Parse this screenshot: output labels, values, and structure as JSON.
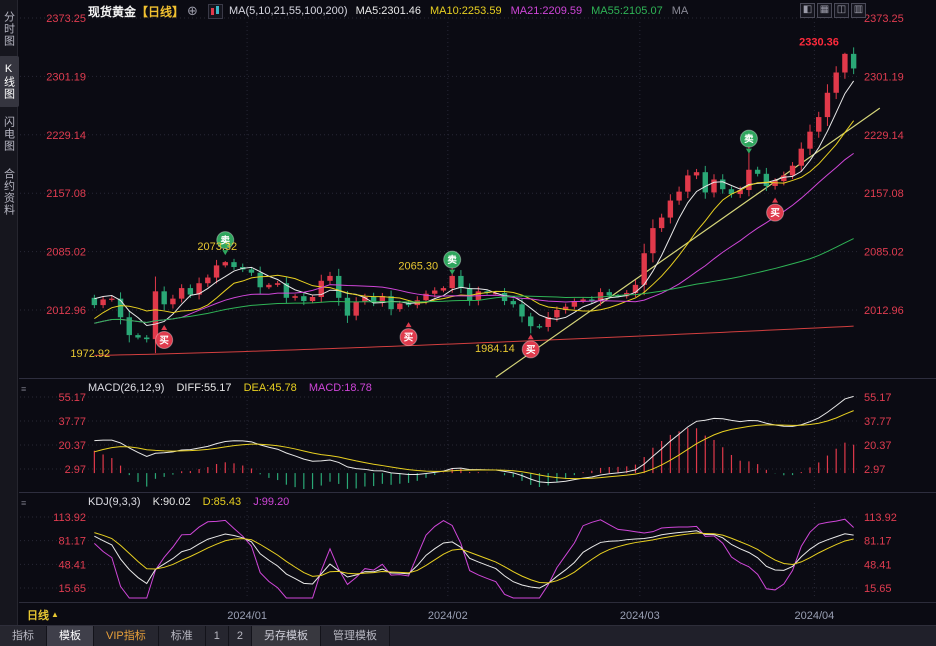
{
  "header": {
    "title": "现货黄金",
    "period": "【日线】",
    "ma_settings": "MA(5,10,21,55,100,200)",
    "ma": [
      {
        "text": "MA5:2301.46",
        "color": "#e8e8e8"
      },
      {
        "text": "MA10:2253.59",
        "color": "#e8d021"
      },
      {
        "text": "MA21:2209.59",
        "color": "#cf46d8"
      },
      {
        "text": "MA55:2105.07",
        "color": "#2fb456"
      },
      {
        "text": "MA",
        "color": "#8a8a96"
      }
    ]
  },
  "icons": {
    "add": "⊕",
    "handle": "≡",
    "layout": [
      "◧",
      "▦",
      "◫",
      "▥"
    ]
  },
  "sidebar": {
    "items": [
      {
        "label": "分时图",
        "selected": false
      },
      {
        "label": "K线图",
        "selected": true
      },
      {
        "label": "闪电图",
        "selected": false
      },
      {
        "label": "合约资料",
        "selected": false
      }
    ]
  },
  "macd_header": {
    "name": "MACD(26,12,9)",
    "diff": "DIFF:55.17",
    "dea": "DEA:45.78",
    "macd": "MACD:18.78"
  },
  "kdj_header": {
    "name": "KDJ(9,3,3)",
    "k": "K:90.02",
    "d": "D:85.43",
    "j": "J:99.20"
  },
  "period_selector": {
    "label": "日线",
    "arrow": "▲"
  },
  "bottom_tabs": [
    {
      "label": "指标"
    },
    {
      "label": "模板",
      "active": true
    },
    {
      "label": "VIP指标",
      "vip": true
    },
    {
      "label": "标准"
    },
    {
      "label": "1",
      "small": true
    },
    {
      "label": "2",
      "small": true
    },
    {
      "label": "另存模板",
      "raised": true
    },
    {
      "label": "管理模板"
    }
  ],
  "chart_data": {
    "type": "candlestick",
    "symbol": "现货黄金",
    "period": "日线",
    "price_axis": [
      2373.25,
      2301.19,
      2229.14,
      2157.08,
      2085.02,
      2012.96
    ],
    "macd_axis": [
      55.17,
      37.77,
      20.37,
      2.97
    ],
    "kdj_axis": [
      113.92,
      81.17,
      48.41,
      15.65
    ],
    "x_ticks": [
      {
        "label": "2024/01",
        "index": 18
      },
      {
        "label": "2024/02",
        "index": 41
      },
      {
        "label": "2024/03",
        "index": 63
      },
      {
        "label": "2024/04",
        "index": 83
      }
    ],
    "warmup": [
      1940,
      1952,
      1966,
      1978,
      1990,
      2003,
      2012,
      2021,
      2034,
      2048
    ],
    "closes": [
      2019,
      2026,
      2027,
      2004,
      1982,
      1979,
      1977,
      2036,
      2020,
      2027,
      2040,
      2032,
      2046,
      2053,
      2068,
      2072,
      2066,
      2063,
      2059,
      2041,
      2044,
      2046,
      2028,
      2030,
      2024,
      2029,
      2049,
      2055,
      2028,
      2006,
      2023,
      2029,
      2022,
      2030,
      2014,
      2021,
      2019,
      2025,
      2033,
      2037,
      2040,
      2055,
      2040,
      2025,
      2036,
      2034,
      2034,
      2024,
      2020,
      2005,
      1993,
      1992,
      2004,
      2013,
      2017,
      2024,
      2026,
      2024,
      2035,
      2031,
      2030,
      2034,
      2044,
      2083,
      2114,
      2127,
      2148,
      2159,
      2179,
      2183,
      2158,
      2174,
      2162,
      2156,
      2161,
      2186,
      2181,
      2166,
      2172,
      2179,
      2191,
      2212,
      2233,
      2251,
      2281,
      2306,
      2329,
      2311
    ],
    "extremes": {
      "6": {
        "low": 1972.92
      },
      "15": {
        "high": 2073.32
      },
      "41": {
        "high": 2065.3
      },
      "50": {
        "low": 1984.14
      },
      "75": {
        "high": 2222.0
      },
      "86": {
        "high": 2330.36
      }
    },
    "ma_periods": [
      5,
      10,
      21,
      55
    ],
    "ma200": {
      "start": 1957,
      "end": 1993
    },
    "trendline": {
      "i1": 46,
      "p1": 1930,
      "i2": 90,
      "p2": 2262
    },
    "markers": [
      {
        "type": "buy",
        "label": "买",
        "i": 8,
        "dy": 14
      },
      {
        "type": "sell",
        "label": "卖",
        "i": 15,
        "dy": -5
      },
      {
        "type": "buy",
        "label": "买",
        "i": 36,
        "dy": 14
      },
      {
        "type": "sell",
        "label": "卖",
        "i": 41,
        "dy": 8
      },
      {
        "type": "buy",
        "label": "买",
        "i": 50,
        "dy": 0
      },
      {
        "type": "sell",
        "label": "卖",
        "i": 75,
        "dy": 14
      },
      {
        "type": "buy",
        "label": "买",
        "i": 78,
        "dy": 7
      }
    ],
    "annotations": [
      {
        "text": "1972.92",
        "i": 8,
        "dx": -54,
        "p": 1960,
        "anchor": "end",
        "color": "#e8c832"
      },
      {
        "text": "2073.32",
        "i": 15,
        "dx": -8,
        "p": 2092,
        "anchor": "middle",
        "color": "#e8c832"
      },
      {
        "text": "2065.30",
        "i": 41,
        "dx": -14,
        "p": 2068,
        "anchor": "end",
        "color": "#e8c832"
      },
      {
        "text": "1984.14",
        "i": 50,
        "dx": -16,
        "p": 1966,
        "anchor": "end",
        "color": "#e8c832"
      },
      {
        "text": "2330.36",
        "i": 86,
        "dx": -6,
        "p": 2344,
        "anchor": "end",
        "color": "#ff2a3c",
        "bold": true
      }
    ],
    "colors": {
      "up": "#e0394a",
      "down": "#2aa876",
      "ma5": "#e8e8e8",
      "ma10": "#e8d021",
      "ma21": "#cf46d8",
      "ma55": "#2fb456",
      "ma200": "#d23f3f",
      "trend": "#d6d67a",
      "axis": "#e03c50",
      "grid": "#282836",
      "xlabel": "#9aa0b4",
      "buy": "#df3b4d",
      "sell": "#2fa65e"
    }
  }
}
